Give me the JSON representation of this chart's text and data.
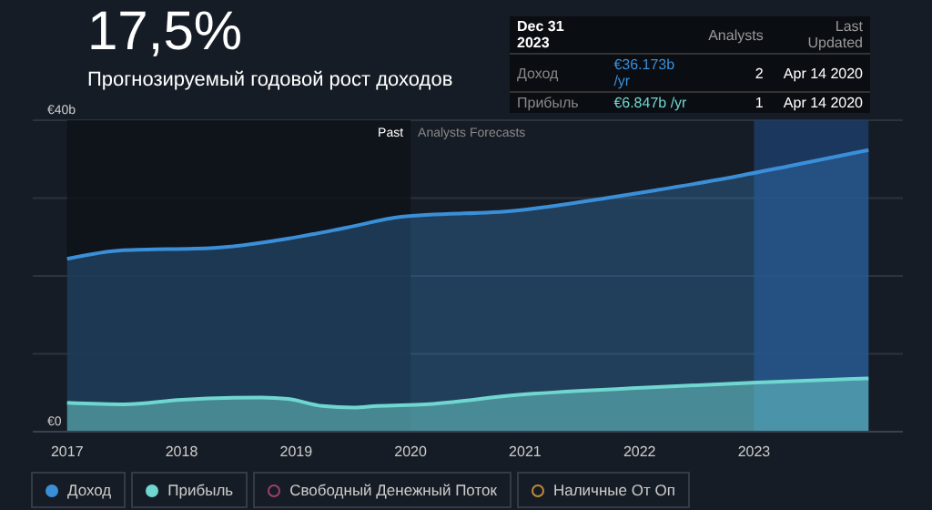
{
  "chart_data": {
    "type": "area",
    "title": "17,5%",
    "subtitle": "Прогнозируемый годовой рост доходов",
    "annotations": [
      "Dec 31 2023",
      "Analysts",
      "Last Updated",
      "Доход",
      "€36.173b /yr",
      "2",
      "Apr 14 2020",
      "Прибыль",
      "€6.847b /yr",
      "1",
      "Apr 14 2020",
      "Analysts Forecasts"
    ],
    "xlim": [
      2016.7,
      2024.3
    ],
    "xticks": [
      2017,
      2018,
      2019,
      2020,
      2021,
      2022,
      2023
    ],
    "ylim": [
      0,
      40
    ],
    "yticks": [
      {
        "value": 0,
        "label": "€0"
      },
      {
        "value": 10,
        "label": null
      },
      {
        "value": 20,
        "label": null
      },
      {
        "value": 30,
        "label": null
      },
      {
        "value": 40,
        "label": "€40b"
      }
    ],
    "grid": "y",
    "legend": "bottom",
    "bands": [
      {
        "axis": "x",
        "from": 2017,
        "to": 2020,
        "label": "Past",
        "color": "#0e1218"
      },
      {
        "axis": "x",
        "from": 2023,
        "to": 2024,
        "color": "#1d3f6b"
      }
    ],
    "series": [
      {
        "name": "Доход",
        "color": "#3a8fd8",
        "x": [
          2017,
          2017.49,
          2018.28,
          2018.97,
          2019.44,
          2019.92,
          2020.92,
          2021.71,
          2022.14,
          2022.78,
          2023.3,
          2024
        ],
        "values": [
          22.2,
          23.3,
          23.6,
          24.9,
          26.2,
          27.6,
          28.4,
          30.0,
          31.0,
          32.6,
          34.1,
          36.173
        ]
      },
      {
        "name": "Прибыль",
        "color": "#6fd6d0",
        "x": [
          2017,
          2017.5,
          2018.0,
          2018.7,
          2018.93,
          2019.23,
          2019.5,
          2019.71,
          2020.13,
          2020.92,
          2021.98,
          2022.98,
          2024
        ],
        "values": [
          3.7,
          3.5,
          4.1,
          4.4,
          4.2,
          3.3,
          3.1,
          3.3,
          3.5,
          4.7,
          5.6,
          6.3,
          6.847
        ]
      },
      {
        "name": "Свободный Денежный Поток",
        "color": "#a0406a"
      },
      {
        "name": "Наличные От Оп",
        "color": "#c08a3a"
      }
    ]
  }
}
